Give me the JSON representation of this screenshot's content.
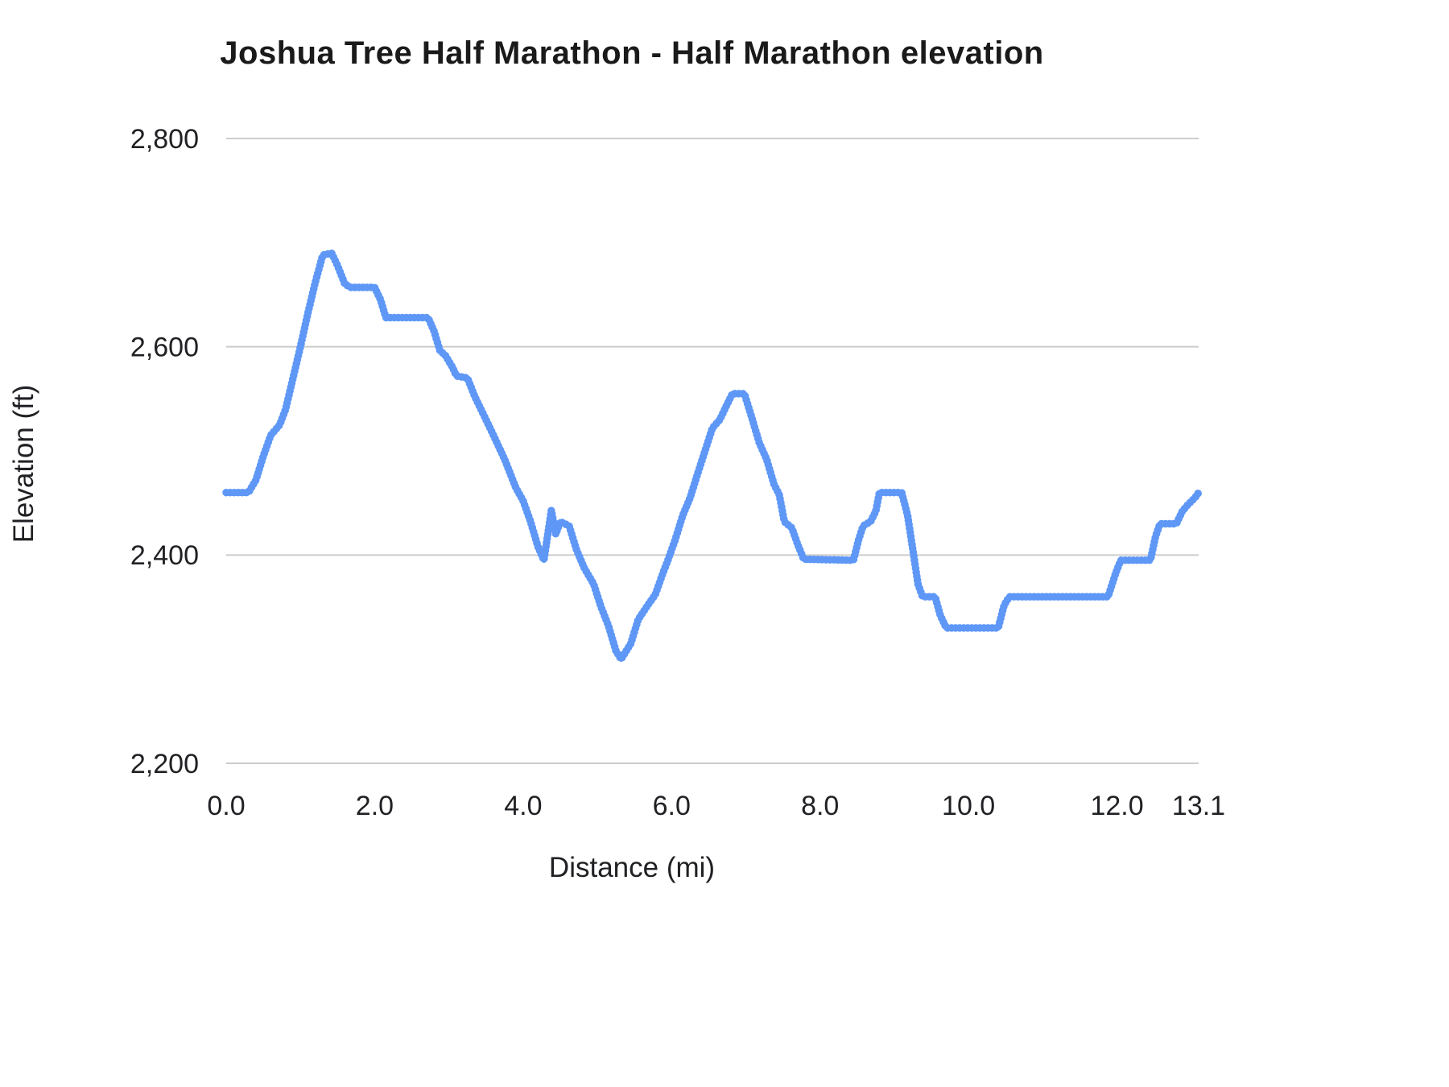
{
  "chart_data": {
    "type": "line",
    "title": "Joshua Tree Half Marathon - Half Marathon elevation",
    "xlabel": "Distance (mi)",
    "ylabel": "Elevation (ft)",
    "xlim": [
      0,
      13.1
    ],
    "ylim": [
      2200,
      2800
    ],
    "grid": "horizontal",
    "legend": "none",
    "gridline_color": "#cccccc",
    "x_ticks": {
      "values": [
        0,
        2,
        4,
        6,
        8,
        10,
        12,
        13.1
      ],
      "labels": [
        "0.0",
        "2.0",
        "4.0",
        "6.0",
        "8.0",
        "10.0",
        "12.0",
        "13.1"
      ]
    },
    "y_ticks": {
      "values": [
        2200,
        2400,
        2600,
        2800
      ],
      "labels": [
        "2,200",
        "2,400",
        "2,600",
        "2,800"
      ]
    },
    "series": [
      {
        "name": "Half Marathon elevation",
        "color": "#5e97f6",
        "style": "dotted-thick",
        "points": [
          [
            0.0,
            2460
          ],
          [
            0.3,
            2460
          ],
          [
            0.4,
            2472
          ],
          [
            0.5,
            2495
          ],
          [
            0.6,
            2515
          ],
          [
            0.72,
            2525
          ],
          [
            0.8,
            2540
          ],
          [
            0.9,
            2570
          ],
          [
            1.0,
            2600
          ],
          [
            1.1,
            2632
          ],
          [
            1.2,
            2662
          ],
          [
            1.3,
            2688
          ],
          [
            1.42,
            2690
          ],
          [
            1.5,
            2678
          ],
          [
            1.6,
            2660
          ],
          [
            1.68,
            2657
          ],
          [
            2.0,
            2657
          ],
          [
            2.08,
            2645
          ],
          [
            2.15,
            2628
          ],
          [
            2.72,
            2628
          ],
          [
            2.8,
            2615
          ],
          [
            2.88,
            2596
          ],
          [
            2.95,
            2592
          ],
          [
            3.05,
            2580
          ],
          [
            3.1,
            2572
          ],
          [
            3.25,
            2570
          ],
          [
            3.35,
            2552
          ],
          [
            3.5,
            2530
          ],
          [
            3.6,
            2515
          ],
          [
            3.75,
            2492
          ],
          [
            3.9,
            2465
          ],
          [
            4.0,
            2452
          ],
          [
            4.1,
            2432
          ],
          [
            4.2,
            2408
          ],
          [
            4.28,
            2395
          ],
          [
            4.38,
            2443
          ],
          [
            4.44,
            2420
          ],
          [
            4.5,
            2432
          ],
          [
            4.62,
            2428
          ],
          [
            4.72,
            2405
          ],
          [
            4.82,
            2388
          ],
          [
            4.95,
            2372
          ],
          [
            5.05,
            2350
          ],
          [
            5.15,
            2332
          ],
          [
            5.25,
            2308
          ],
          [
            5.32,
            2300
          ],
          [
            5.45,
            2315
          ],
          [
            5.55,
            2338
          ],
          [
            5.68,
            2352
          ],
          [
            5.78,
            2362
          ],
          [
            5.88,
            2382
          ],
          [
            5.95,
            2395
          ],
          [
            6.05,
            2415
          ],
          [
            6.15,
            2438
          ],
          [
            6.25,
            2455
          ],
          [
            6.35,
            2478
          ],
          [
            6.45,
            2500
          ],
          [
            6.55,
            2522
          ],
          [
            6.65,
            2530
          ],
          [
            6.75,
            2545
          ],
          [
            6.82,
            2555
          ],
          [
            6.98,
            2555
          ],
          [
            7.08,
            2532
          ],
          [
            7.18,
            2508
          ],
          [
            7.28,
            2492
          ],
          [
            7.38,
            2468
          ],
          [
            7.45,
            2458
          ],
          [
            7.52,
            2432
          ],
          [
            7.62,
            2426
          ],
          [
            7.7,
            2410
          ],
          [
            7.78,
            2396
          ],
          [
            8.45,
            2395
          ],
          [
            8.52,
            2415
          ],
          [
            8.58,
            2428
          ],
          [
            8.68,
            2432
          ],
          [
            8.75,
            2442
          ],
          [
            8.8,
            2460
          ],
          [
            9.1,
            2460
          ],
          [
            9.18,
            2438
          ],
          [
            9.25,
            2405
          ],
          [
            9.32,
            2372
          ],
          [
            9.38,
            2360
          ],
          [
            9.55,
            2360
          ],
          [
            9.62,
            2342
          ],
          [
            9.7,
            2330
          ],
          [
            10.4,
            2330
          ],
          [
            10.48,
            2352
          ],
          [
            10.55,
            2360
          ],
          [
            11.88,
            2360
          ],
          [
            11.98,
            2382
          ],
          [
            12.05,
            2395
          ],
          [
            12.45,
            2395
          ],
          [
            12.52,
            2418
          ],
          [
            12.58,
            2430
          ],
          [
            12.8,
            2430
          ],
          [
            12.88,
            2442
          ],
          [
            12.95,
            2448
          ],
          [
            13.05,
            2455
          ],
          [
            13.1,
            2460
          ]
        ]
      }
    ]
  }
}
